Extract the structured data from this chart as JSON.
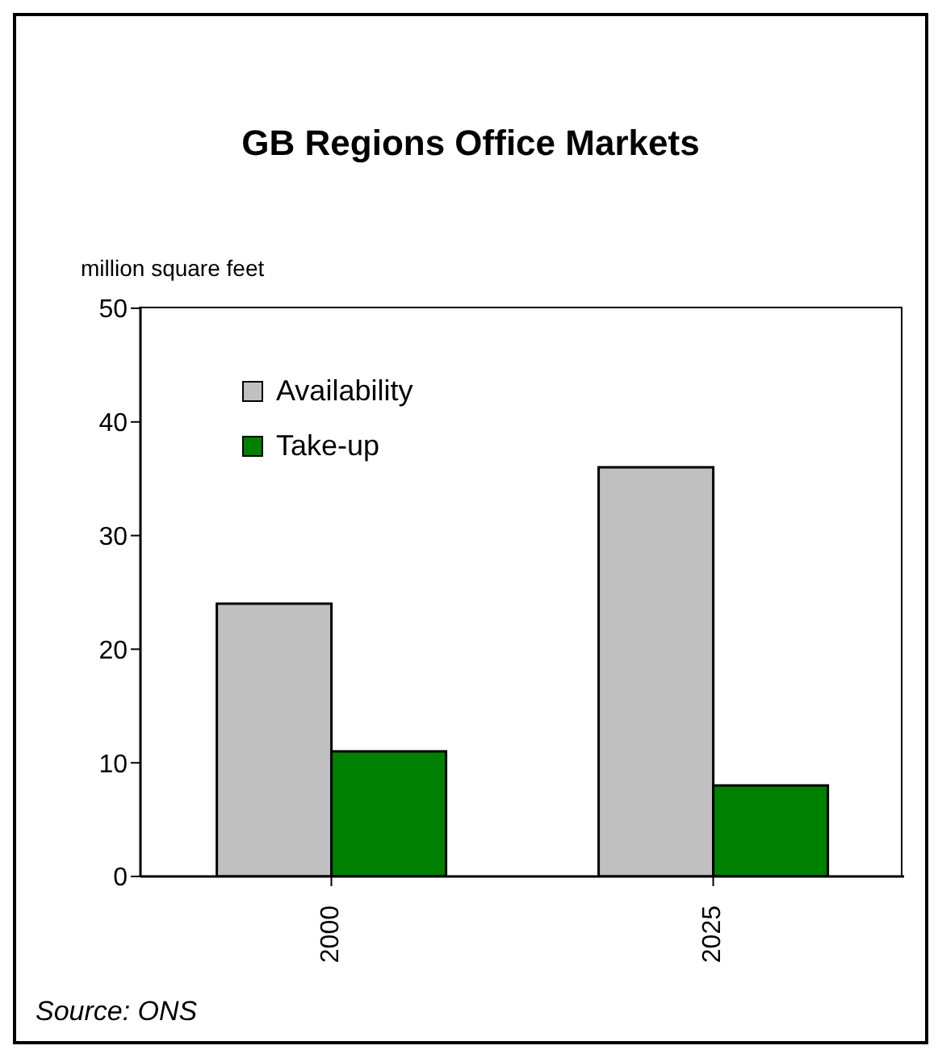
{
  "chart_data": {
    "type": "bar",
    "title": "GB Regions Office Markets",
    "ylabel": "million square feet",
    "categories": [
      "2000",
      "2025"
    ],
    "series": [
      {
        "name": "Availability",
        "color": "#c0c0c0",
        "values": [
          24,
          36
        ]
      },
      {
        "name": "Take-up",
        "color": "#008000",
        "values": [
          11,
          8
        ]
      }
    ],
    "ylim": [
      0,
      50
    ],
    "yticks": [
      0,
      10,
      20,
      30,
      40,
      50
    ],
    "grid": false,
    "legend": "top left",
    "annotations": [
      "Source: ONS"
    ]
  }
}
